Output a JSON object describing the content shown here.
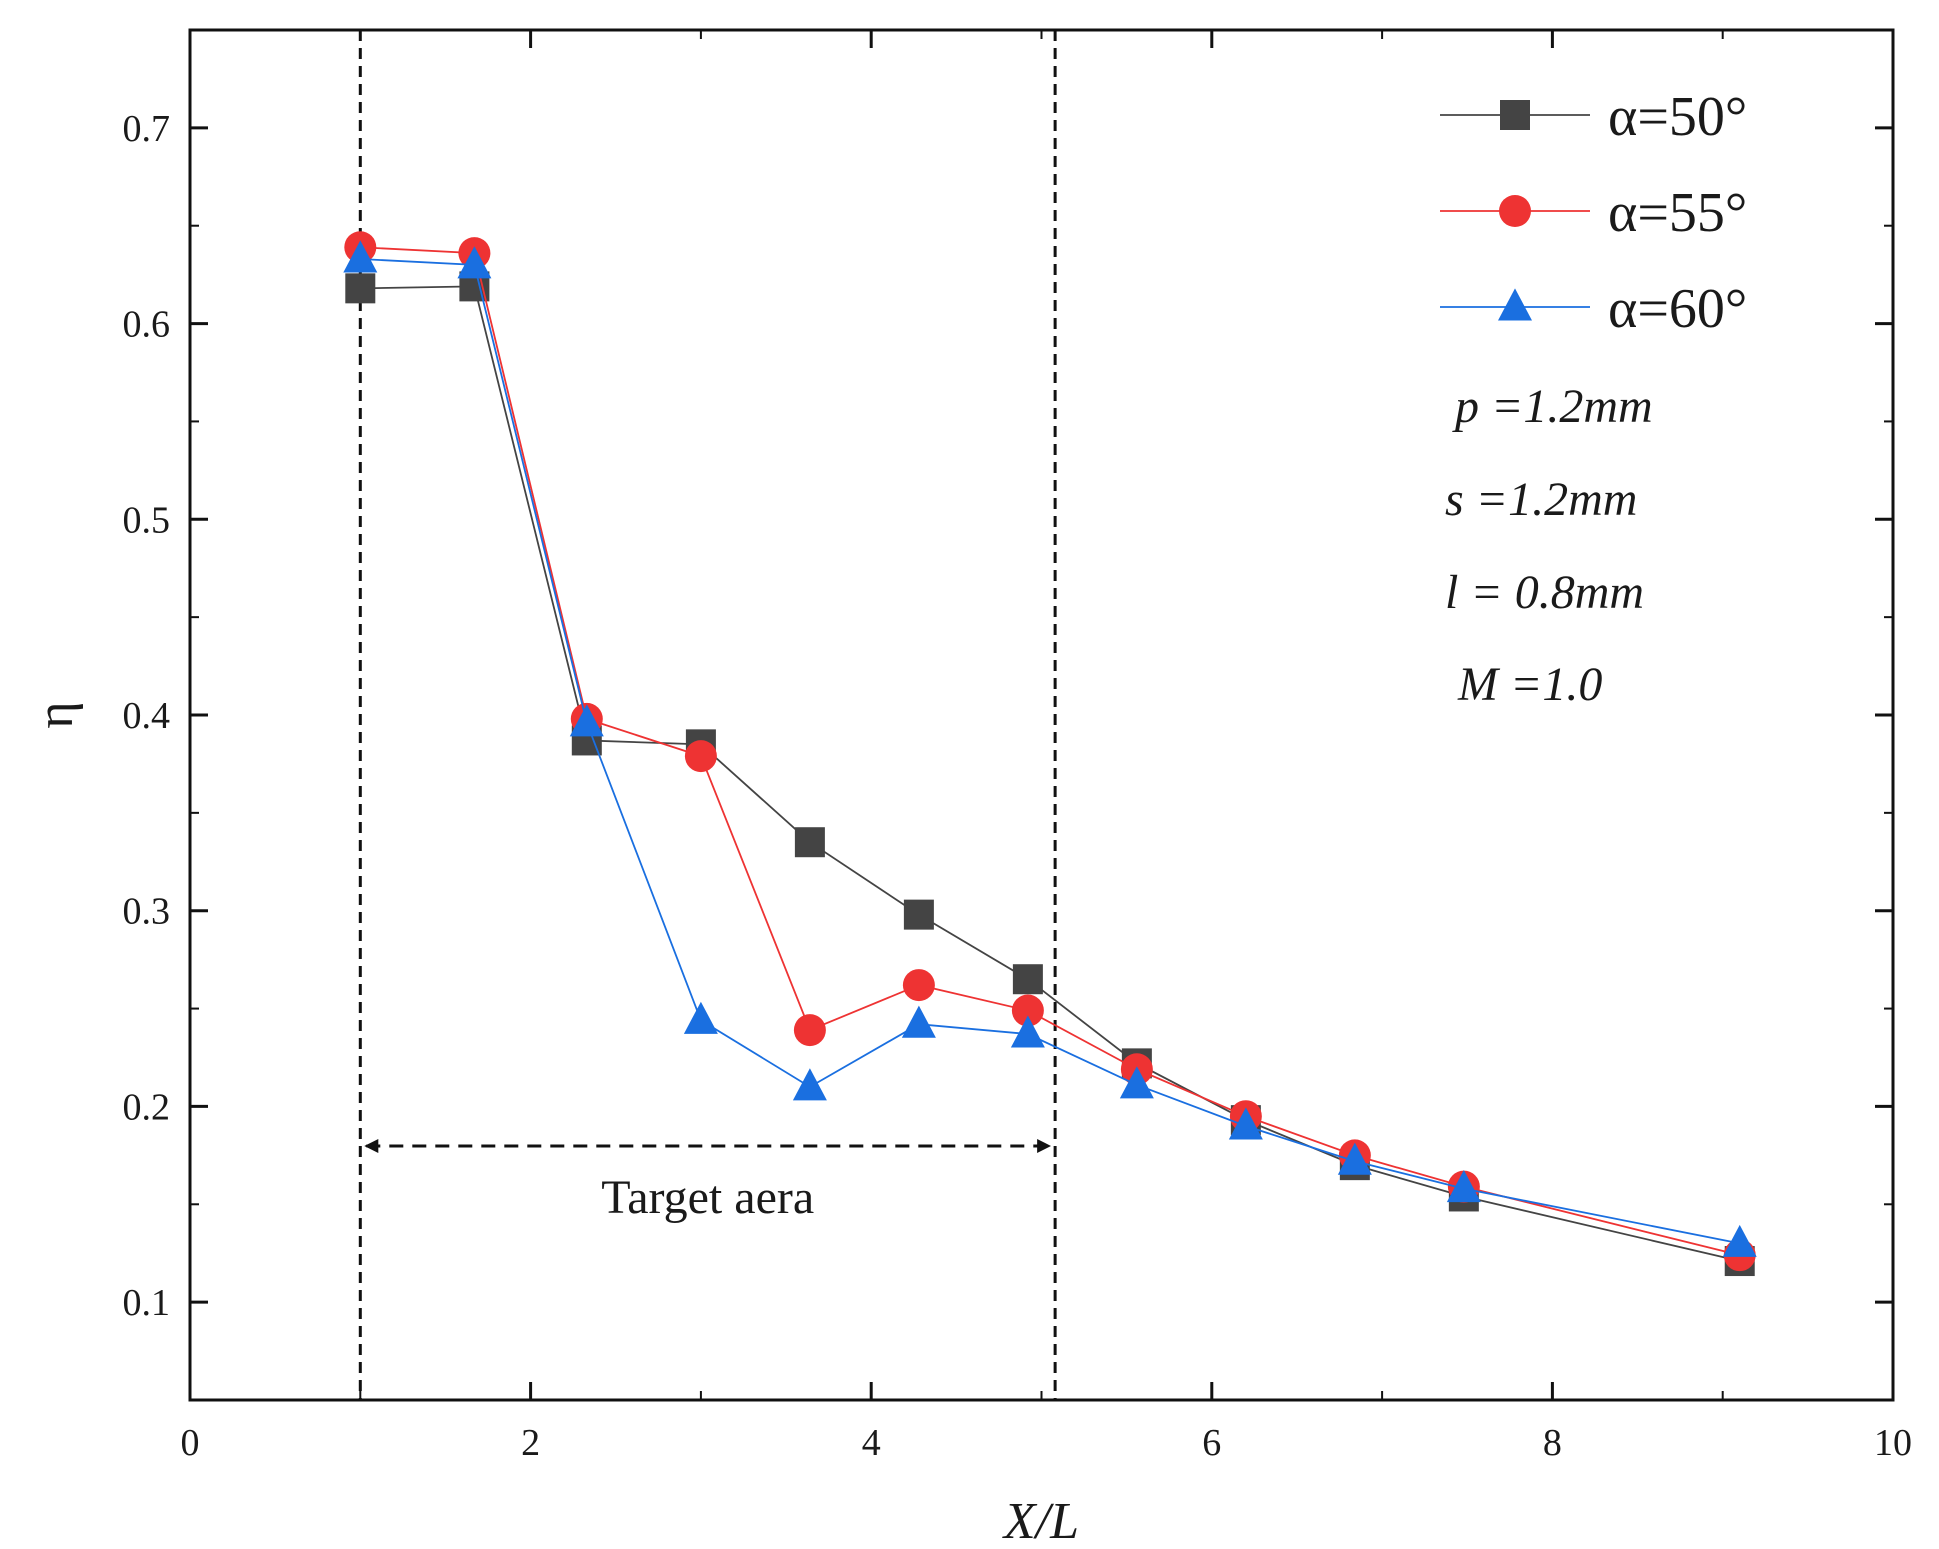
{
  "chart_data": {
    "type": "line",
    "title": "",
    "xlabel": "X/L",
    "ylabel": "η",
    "xlim": [
      0,
      10
    ],
    "ylim": [
      0.05,
      0.75
    ],
    "xticks": [
      0,
      2,
      4,
      6,
      8,
      10
    ],
    "yticks": [
      0.1,
      0.2,
      0.3,
      0.4,
      0.5,
      0.6,
      0.7
    ],
    "x": [
      1.0,
      1.67,
      2.33,
      3.0,
      3.64,
      4.28,
      4.92,
      5.56,
      6.2,
      6.84,
      7.48,
      9.1
    ],
    "series": [
      {
        "name": "α=50°",
        "color": "#444444",
        "marker": "square",
        "values": [
          0.618,
          0.619,
          0.387,
          0.385,
          0.335,
          0.298,
          0.265,
          0.222,
          0.193,
          0.17,
          0.154,
          0.121
        ]
      },
      {
        "name": "α=55°",
        "color": "#ee3333",
        "marker": "circle",
        "values": [
          0.639,
          0.636,
          0.398,
          0.379,
          0.239,
          0.262,
          0.249,
          0.219,
          0.195,
          0.175,
          0.159,
          0.124
        ]
      },
      {
        "name": "α=60°",
        "color": "#1a6fe0",
        "marker": "triangle",
        "values": [
          0.633,
          0.63,
          0.396,
          0.244,
          0.21,
          0.242,
          0.237,
          0.211,
          0.19,
          0.172,
          0.158,
          0.13
        ]
      }
    ],
    "vlines": [
      1.0,
      5.08
    ],
    "legend_position": "top-right",
    "annotations": {
      "target_label": "Target aera",
      "target_range": [
        1.0,
        5.08
      ],
      "params": [
        "p =1.2mm",
        "s =1.2mm",
        "l = 0.8mm",
        "M =1.0"
      ]
    }
  }
}
